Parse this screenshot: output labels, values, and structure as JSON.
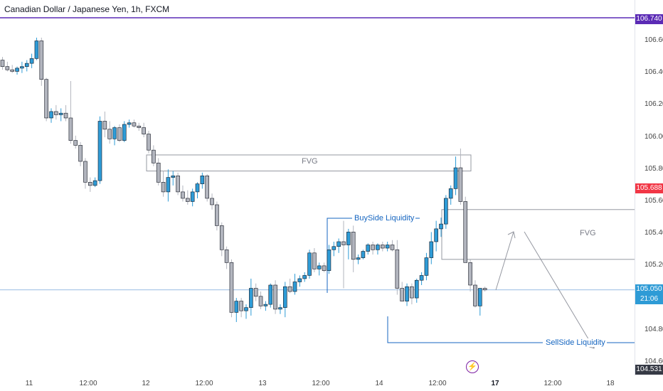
{
  "title": "Canadian Dollar / Japanese Yen, 1h, FXCM",
  "price_axis": {
    "labels": [
      "106.740",
      "106.600",
      "106.400",
      "106.200",
      "106.000",
      "105.800",
      "105.600",
      "105.400",
      "105.200",
      "104.800",
      "104.600"
    ],
    "top_badge": "106.740",
    "red_badge": "105.688",
    "current_price": "105.050",
    "countdown": "21:06",
    "bottom_badge": "104.531"
  },
  "time_axis": {
    "labels": [
      "11",
      "12:00",
      "12",
      "12:00",
      "13",
      "12:00",
      "14",
      "12:00",
      "17",
      "12:00",
      "18"
    ]
  },
  "annotations": {
    "fvg_top": "FVG",
    "fvg_right": "FVG",
    "buyside": "BuySide Liquidity",
    "sellside": "SellSide Liquidity"
  },
  "colors": {
    "bull": "#2e9bd6",
    "bear": "#b2b5be",
    "candle_border": "#131722",
    "purple_line": "#5b2bb5",
    "level_line": "#1565c0",
    "red_badge": "#f23645",
    "blue_badge": "#2e9bd6",
    "dark_badge": "#363a45",
    "box_border": "#9598a1"
  },
  "chart_data": {
    "type": "candlestick",
    "series_colors": {
      "up": "#2e9bd6",
      "down": "#b2b5be"
    },
    "candles": [
      [
        106.48,
        106.5,
        106.42,
        106.44
      ],
      [
        106.44,
        106.47,
        106.41,
        106.42
      ],
      [
        106.42,
        106.45,
        106.4,
        106.41
      ],
      [
        106.41,
        106.44,
        106.39,
        106.43
      ],
      [
        106.43,
        106.47,
        106.4,
        106.44
      ],
      [
        106.44,
        106.48,
        106.41,
        106.46
      ],
      [
        106.46,
        106.52,
        106.43,
        106.49
      ],
      [
        106.49,
        106.62,
        106.48,
        106.6
      ],
      [
        106.6,
        106.62,
        106.32,
        106.36
      ],
      [
        106.36,
        106.37,
        106.1,
        106.12
      ],
      [
        106.12,
        106.18,
        106.09,
        106.16
      ],
      [
        106.16,
        106.2,
        106.11,
        106.14
      ],
      [
        106.14,
        106.18,
        106.1,
        106.15
      ],
      [
        106.15,
        106.2,
        106.1,
        106.12
      ],
      [
        106.12,
        106.35,
        105.96,
        105.98
      ],
      [
        105.98,
        106.01,
        105.93,
        105.95
      ],
      [
        105.95,
        105.97,
        105.82,
        105.85
      ],
      [
        105.85,
        105.87,
        105.68,
        105.72
      ],
      [
        105.72,
        105.75,
        105.66,
        105.7
      ],
      [
        105.7,
        105.75,
        105.69,
        105.73
      ],
      [
        105.73,
        106.13,
        105.71,
        106.1
      ],
      [
        106.1,
        106.16,
        106.0,
        106.05
      ],
      [
        106.05,
        106.1,
        105.96,
        105.99
      ],
      [
        105.99,
        106.07,
        105.95,
        106.06
      ],
      [
        106.06,
        106.08,
        105.97,
        105.98
      ],
      [
        105.98,
        106.1,
        105.97,
        106.08
      ],
      [
        106.08,
        106.11,
        106.06,
        106.09
      ],
      [
        106.09,
        106.11,
        106.06,
        106.07
      ],
      [
        106.07,
        106.09,
        106.04,
        106.06
      ],
      [
        106.06,
        106.09,
        106.0,
        106.02
      ],
      [
        106.02,
        106.04,
        105.9,
        105.92
      ],
      [
        105.92,
        105.95,
        105.82,
        105.84
      ],
      [
        105.84,
        105.87,
        105.7,
        105.72
      ],
      [
        105.72,
        105.79,
        105.63,
        105.66
      ],
      [
        105.66,
        105.8,
        105.6,
        105.75
      ],
      [
        105.75,
        105.79,
        105.7,
        105.76
      ],
      [
        105.76,
        105.78,
        105.64,
        105.66
      ],
      [
        105.66,
        105.7,
        105.6,
        105.62
      ],
      [
        105.62,
        105.67,
        105.58,
        105.6
      ],
      [
        105.6,
        105.68,
        105.57,
        105.66
      ],
      [
        105.66,
        105.72,
        105.62,
        105.71
      ],
      [
        105.71,
        105.78,
        105.68,
        105.76
      ],
      [
        105.76,
        105.77,
        105.6,
        105.62
      ],
      [
        105.62,
        105.65,
        105.55,
        105.58
      ],
      [
        105.58,
        105.6,
        105.42,
        105.45
      ],
      [
        105.45,
        105.47,
        105.26,
        105.3
      ],
      [
        105.3,
        105.32,
        105.18,
        105.22
      ],
      [
        105.22,
        105.24,
        104.88,
        104.91
      ],
      [
        104.91,
        105.0,
        104.85,
        104.98
      ],
      [
        104.98,
        105.0,
        104.88,
        104.92
      ],
      [
        104.92,
        104.96,
        104.87,
        104.94
      ],
      [
        104.94,
        105.12,
        104.89,
        105.06
      ],
      [
        105.06,
        105.09,
        104.98,
        105.01
      ],
      [
        105.01,
        105.04,
        104.93,
        104.95
      ],
      [
        104.95,
        104.98,
        104.92,
        104.96
      ],
      [
        104.96,
        105.09,
        104.94,
        105.08
      ],
      [
        105.08,
        105.11,
        104.9,
        104.93
      ],
      [
        104.93,
        104.96,
        104.9,
        104.94
      ],
      [
        104.94,
        105.1,
        104.88,
        105.07
      ],
      [
        105.07,
        105.12,
        105.03,
        105.04
      ],
      [
        105.04,
        105.15,
        105.02,
        105.1
      ],
      [
        105.1,
        105.14,
        105.07,
        105.12
      ],
      [
        105.12,
        105.16,
        105.1,
        105.14
      ],
      [
        105.14,
        105.3,
        105.12,
        105.28
      ],
      [
        105.28,
        105.31,
        105.16,
        105.18
      ],
      [
        105.18,
        105.22,
        105.14,
        105.2
      ],
      [
        105.2,
        105.22,
        105.16,
        105.17
      ],
      [
        105.17,
        105.33,
        105.15,
        105.3
      ],
      [
        105.3,
        105.35,
        105.26,
        105.32
      ],
      [
        105.32,
        105.37,
        105.28,
        105.35
      ],
      [
        105.35,
        105.48,
        105.06,
        105.33
      ],
      [
        105.33,
        105.43,
        105.24,
        105.41
      ],
      [
        105.41,
        105.45,
        105.16,
        105.24
      ],
      [
        105.24,
        105.27,
        105.21,
        105.25
      ],
      [
        105.25,
        105.3,
        105.24,
        105.29
      ],
      [
        105.29,
        105.34,
        105.27,
        105.33
      ],
      [
        105.33,
        105.35,
        105.27,
        105.3
      ],
      [
        105.3,
        105.34,
        105.27,
        105.33
      ],
      [
        105.33,
        105.35,
        105.29,
        105.31
      ],
      [
        105.31,
        105.35,
        105.29,
        105.33
      ],
      [
        105.33,
        105.36,
        105.29,
        105.3
      ],
      [
        105.3,
        105.36,
        105.02,
        105.06
      ],
      [
        105.06,
        105.1,
        104.98,
        104.98
      ],
      [
        104.98,
        105.09,
        104.95,
        105.07
      ],
      [
        105.07,
        105.09,
        104.96,
        105.0
      ],
      [
        105.0,
        105.12,
        104.97,
        105.11
      ],
      [
        105.11,
        105.16,
        105.08,
        105.14
      ],
      [
        105.14,
        105.28,
        105.11,
        105.25
      ],
      [
        105.25,
        105.41,
        105.21,
        105.35
      ],
      [
        105.35,
        105.48,
        105.29,
        105.43
      ],
      [
        105.43,
        105.5,
        105.38,
        105.46
      ],
      [
        105.46,
        105.64,
        105.43,
        105.62
      ],
      [
        105.62,
        105.7,
        105.58,
        105.68
      ],
      [
        105.68,
        105.88,
        105.64,
        105.81
      ],
      [
        105.81,
        105.93,
        105.58,
        105.6
      ],
      [
        105.6,
        105.63,
        105.22,
        105.22
      ],
      [
        105.22,
        105.24,
        105.04,
        105.08
      ],
      [
        105.08,
        105.11,
        104.94,
        104.95
      ],
      [
        104.95,
        105.06,
        104.89,
        105.06
      ],
      [
        105.06,
        105.07,
        105.04,
        105.05
      ]
    ],
    "price_range": [
      104.531,
      106.78
    ],
    "x_labels": [
      "11",
      "12:00",
      "12",
      "12:00",
      "13",
      "12:00",
      "14",
      "12:00",
      "17",
      "12:00",
      "18"
    ]
  }
}
